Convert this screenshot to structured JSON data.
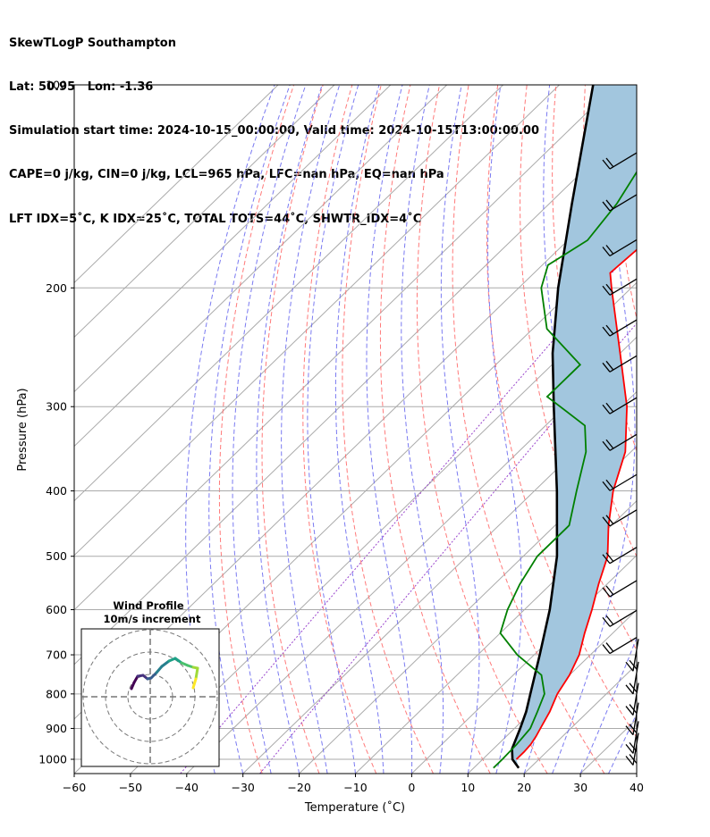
{
  "header": {
    "line1": "SkewTLogP Southampton",
    "line2": "Lat: 50.95   Lon: -1.36",
    "line3": "Simulation start time: 2024-10-15_00:00:00, Valid time: 2024-10-15T13:00:00.00",
    "line4": "CAPE=0 j/kg, CIN=0 j/kg, LCL=965 hPa, LFC=nan hPa, EQ=nan hPa",
    "line5": "LFT IDX=5$^\\circ$C, K IDX=25$^\\circ$C, TOTAL TOTS=44$^\\circ$C, SHWTR_IDX=4$^\\circ$C"
  },
  "header_display": {
    "line5": "LFT IDX=5˚C, K IDX=25˚C, TOTAL TOTS=44˚C, SHWTR_IDX=4˚C"
  },
  "inset": {
    "title1": "Wind Profile",
    "title2": "10m/s increment"
  },
  "chart_data": {
    "type": "line",
    "subtype": "skew-t log-p",
    "xlabel": "Temperature ($^\\circ$C)",
    "xlabel_display": "Temperature (˚C)",
    "ylabel": "Pressure (hPa)",
    "xlim": [
      -60,
      40
    ],
    "ylim": [
      1050,
      100
    ],
    "y_scale": "log",
    "x_ticks": [
      -60,
      -50,
      -40,
      -30,
      -20,
      -10,
      0,
      10,
      20,
      30,
      40
    ],
    "x_tick_labels": [
      "−60",
      "−50",
      "−40",
      "−30",
      "−20",
      "−10",
      "0",
      "10",
      "20",
      "30",
      "40"
    ],
    "y_ticks": [
      100,
      200,
      300,
      400,
      500,
      600,
      700,
      800,
      900,
      1000
    ],
    "y_tick_labels": [
      "100",
      "200",
      "300",
      "400",
      "500",
      "600",
      "700",
      "800",
      "900",
      "1000"
    ],
    "grid": true,
    "colors": {
      "temperature": "#ff0000",
      "dewpoint": "#008000",
      "parcel": "#000000",
      "cape_fill": "#a2c6de",
      "dry_adiabat": "#ff6b6b",
      "moist_adiabat": "#6c6cf0",
      "mixing_ratio": "#9944cc",
      "isotherm": "#aaaaaa"
    },
    "series": [],
    "temperature": [
      [
        1000,
        16.0
      ],
      [
        975,
        16.0
      ],
      [
        950,
        15.8
      ],
      [
        925,
        15.3
      ],
      [
        900,
        14.6
      ],
      [
        850,
        13.2
      ],
      [
        800,
        11.3
      ],
      [
        750,
        10.0
      ],
      [
        700,
        8.0
      ],
      [
        650,
        5.0
      ],
      [
        600,
        2.0
      ],
      [
        550,
        -1.5
      ],
      [
        500,
        -5.0
      ],
      [
        450,
        -10.5
      ],
      [
        400,
        -16.0
      ],
      [
        350,
        -21.0
      ],
      [
        300,
        -29.0
      ],
      [
        250,
        -40.0
      ],
      [
        200,
        -53.5
      ],
      [
        190,
        -56.5
      ],
      [
        175,
        -56.0
      ],
      [
        160,
        -53.0
      ],
      [
        140,
        -54.5
      ],
      [
        125,
        -57.5
      ],
      [
        110,
        -64.0
      ],
      [
        100,
        -70.0
      ]
    ],
    "dewpoint": [
      [
        1030,
        13.5
      ],
      [
        1000,
        13.5
      ],
      [
        950,
        13.3
      ],
      [
        900,
        12.8
      ],
      [
        850,
        11.0
      ],
      [
        800,
        9.0
      ],
      [
        750,
        5.0
      ],
      [
        700,
        -3.0
      ],
      [
        650,
        -10.0
      ],
      [
        600,
        -13.0
      ],
      [
        550,
        -15.5
      ],
      [
        500,
        -17.5
      ],
      [
        450,
        -17.5
      ],
      [
        400,
        -22.5
      ],
      [
        350,
        -28.0
      ],
      [
        320,
        -33.0
      ],
      [
        290,
        -45.0
      ],
      [
        260,
        -45.0
      ],
      [
        230,
        -57.5
      ],
      [
        200,
        -66.0
      ],
      [
        185,
        -69.0
      ],
      [
        170,
        -66.5
      ],
      [
        150,
        -68.0
      ],
      [
        130,
        -71.0
      ],
      [
        120,
        -71.5
      ],
      [
        110,
        -69.5
      ],
      [
        100,
        -68.5
      ]
    ],
    "parcel": [
      [
        1030,
        18.0
      ],
      [
        1000,
        15.3
      ],
      [
        965,
        13.3
      ],
      [
        900,
        11.0
      ],
      [
        850,
        9.0
      ],
      [
        800,
        6.5
      ],
      [
        700,
        1.0
      ],
      [
        600,
        -5.5
      ],
      [
        500,
        -14.0
      ],
      [
        400,
        -26.0
      ],
      [
        300,
        -42.0
      ],
      [
        250,
        -52.0
      ],
      [
        200,
        -63.0
      ],
      [
        150,
        -76.0
      ],
      [
        100,
        -94.0
      ]
    ],
    "cape_fill_between": "temperature and parcel",
    "wind_profile_inset": {
      "title": "Wind Profile",
      "subtitle": "10m/s increment"
    }
  }
}
